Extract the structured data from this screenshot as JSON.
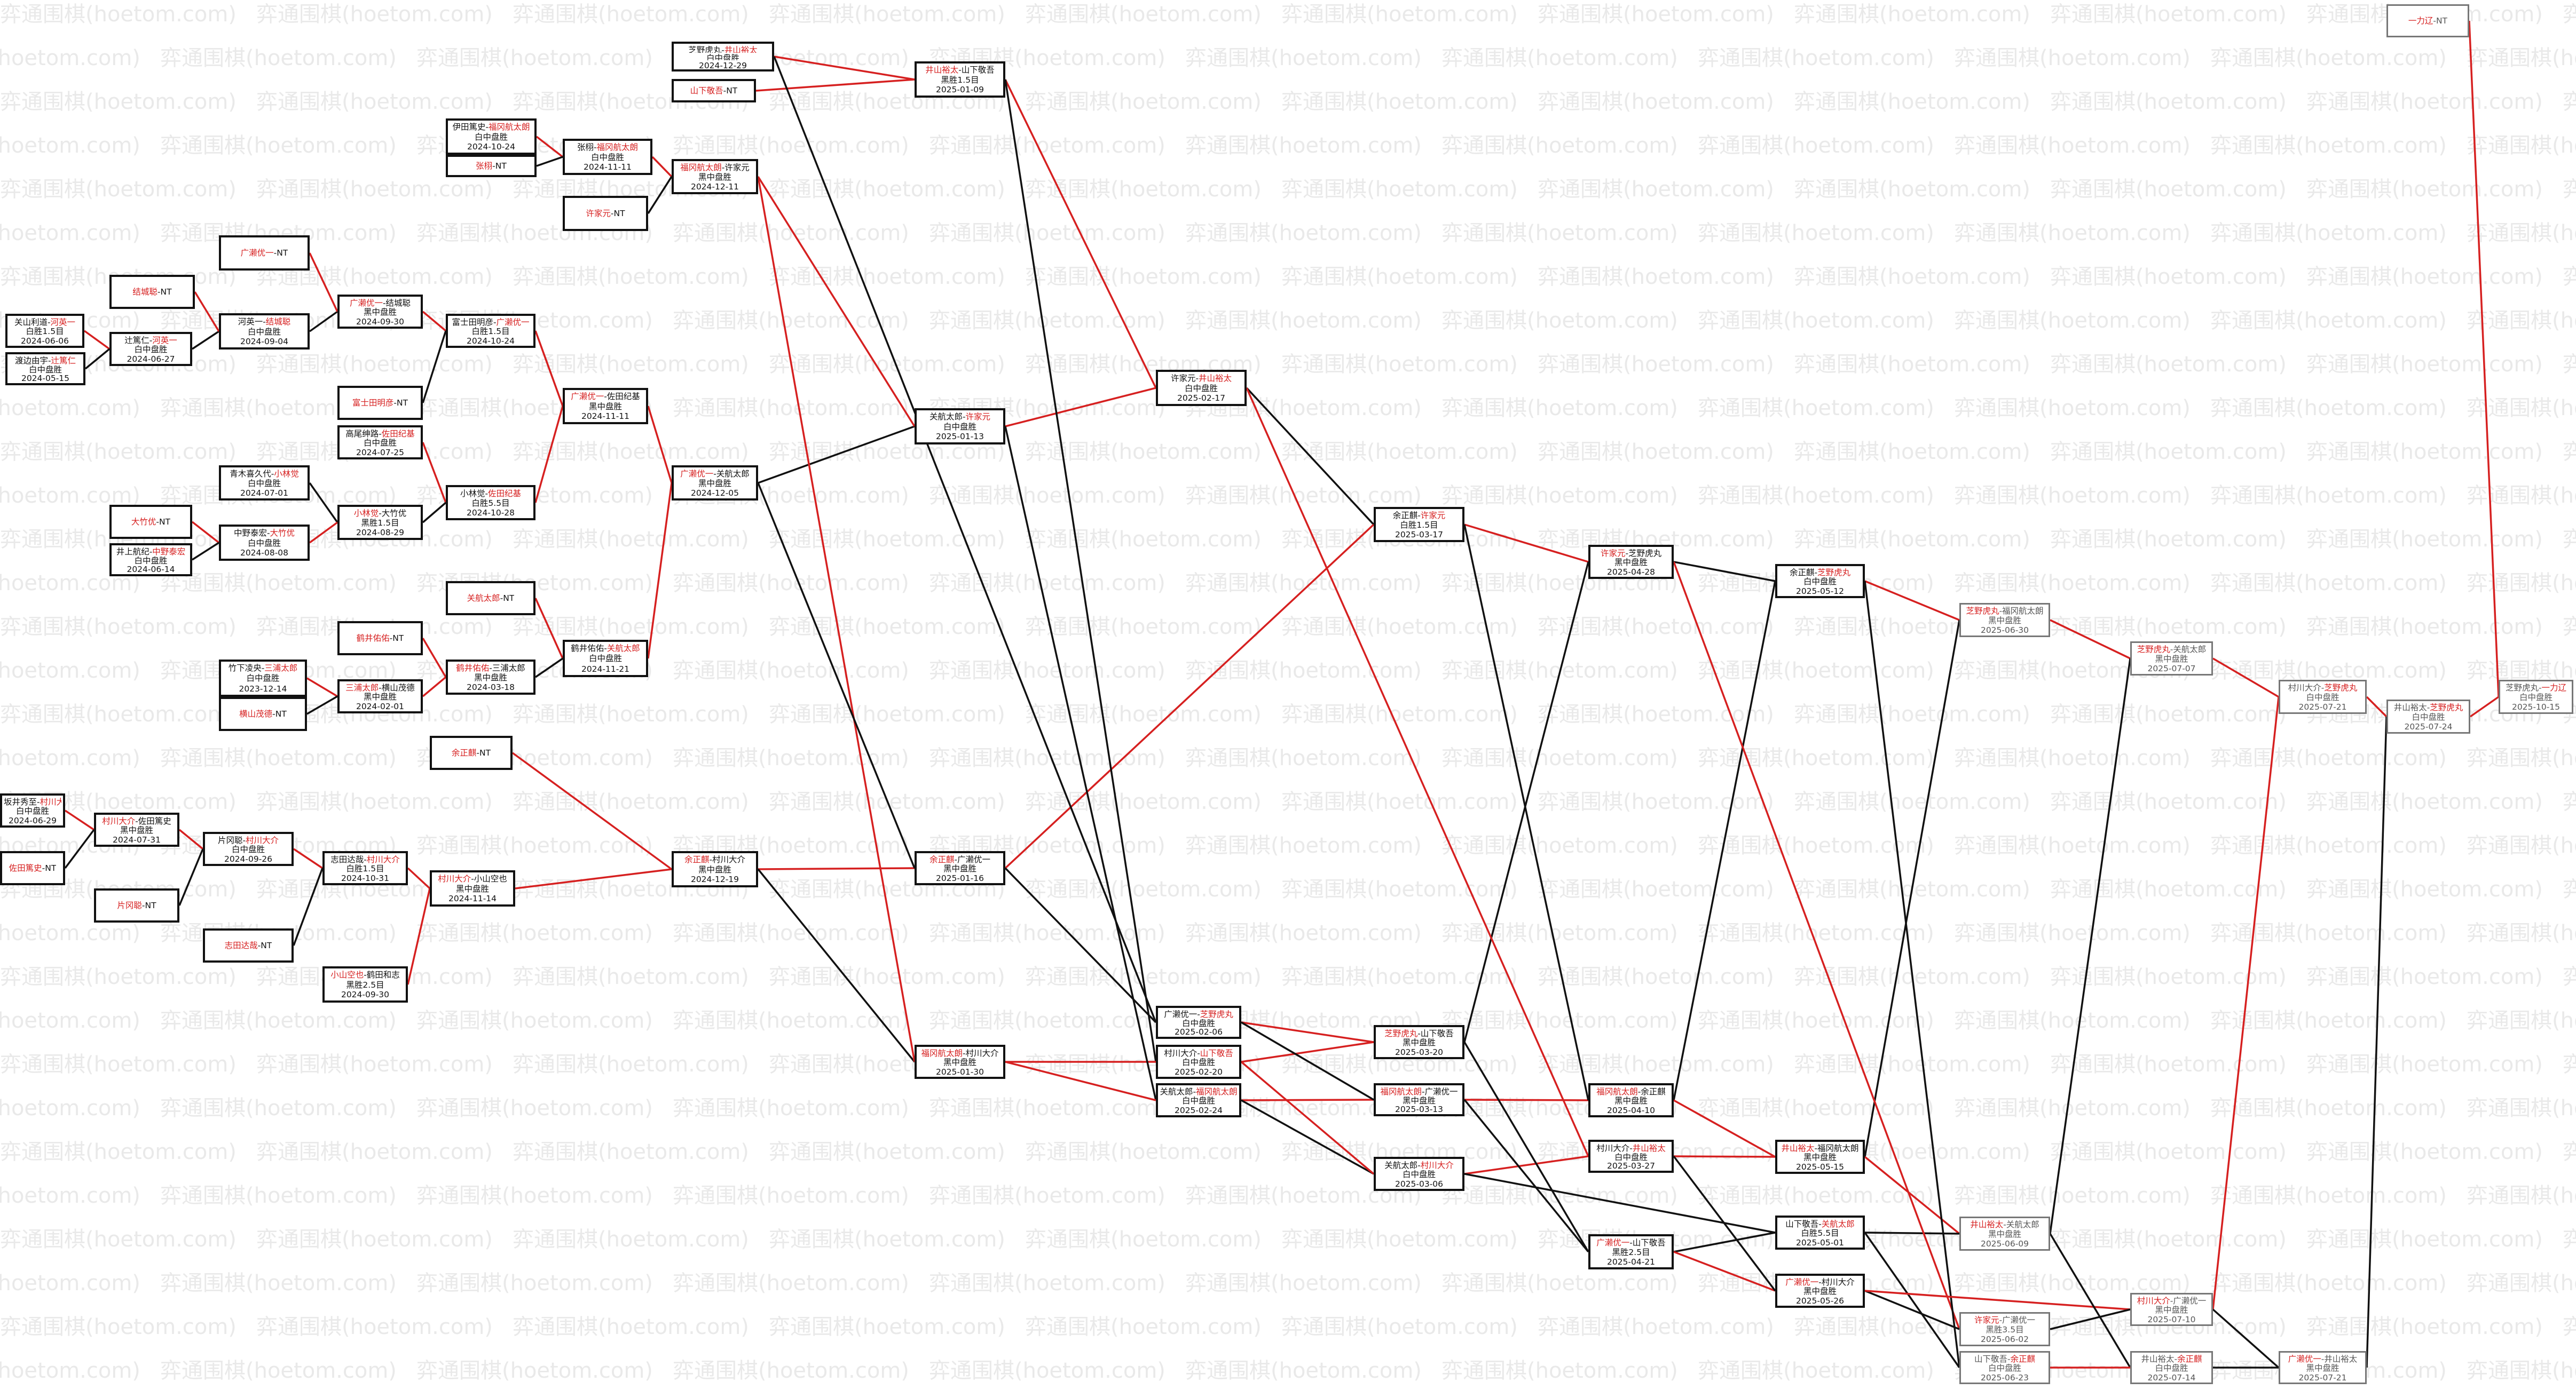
{
  "watermark": "弈通围棋(hoetom.com)",
  "colors": {
    "win": "#d62020",
    "loss": "#111111",
    "border": "#111111",
    "faded": "#777777"
  },
  "nodes": [
    {
      "id": "n1",
      "l1": [
        [
          "芝野虎丸",
          "k"
        ],
        [
          "-",
          "k"
        ],
        [
          "井山裕太",
          "r"
        ]
      ],
      "l2": "白中盘胜",
      "l3": "2024-12-29"
    },
    {
      "id": "n2",
      "l1": [
        [
          "山下敬吾",
          "r"
        ],
        [
          "-NT",
          "k"
        ]
      ]
    },
    {
      "id": "n3",
      "l1": [
        [
          "井山裕太",
          "r"
        ],
        [
          "-山下敬吾",
          "k"
        ]
      ],
      "l2": "黑胜1.5目",
      "l3": "2025-01-09"
    },
    {
      "id": "n4",
      "l1": [
        [
          "伊田篤史-",
          "k"
        ],
        [
          "福冈航太朗",
          "r"
        ]
      ],
      "l2": "白中盘胜",
      "l3": "2024-10-24"
    },
    {
      "id": "n5",
      "l1": [
        [
          "张栩",
          "r"
        ],
        [
          "-NT",
          "k"
        ]
      ]
    },
    {
      "id": "n6",
      "l1": [
        [
          "张栩-",
          "k"
        ],
        [
          "福冈航太朗",
          "r"
        ]
      ],
      "l2": "白中盘胜",
      "l3": "2024-11-11"
    },
    {
      "id": "n7",
      "l1": [
        [
          "福冈航太朗",
          "r"
        ],
        [
          "-许家元",
          "k"
        ]
      ],
      "l2": "黑中盘胜",
      "l3": "2024-12-11"
    },
    {
      "id": "n8",
      "l1": [
        [
          "许家元",
          "r"
        ],
        [
          "-NT",
          "k"
        ]
      ]
    },
    {
      "id": "n9",
      "l1": [
        [
          "广濑优一",
          "r"
        ],
        [
          "-NT",
          "k"
        ]
      ]
    },
    {
      "id": "n10",
      "l1": [
        [
          "结城聪",
          "r"
        ],
        [
          "-NT",
          "k"
        ]
      ]
    },
    {
      "id": "n11",
      "l1": [
        [
          "关山利道-",
          "k"
        ],
        [
          "河英一",
          "r"
        ]
      ],
      "l2": "白胜1.5目",
      "l3": "2024-06-06"
    },
    {
      "id": "n12",
      "l1": [
        [
          "渡边由宇-",
          "k"
        ],
        [
          "辻篤仁",
          "r"
        ]
      ],
      "l2": "白中盘胜",
      "l3": "2024-05-15"
    },
    {
      "id": "n13",
      "l1": [
        [
          "辻篤仁-",
          "k"
        ],
        [
          "河英一",
          "r"
        ]
      ],
      "l2": "白中盘胜",
      "l3": "2024-06-27"
    },
    {
      "id": "n14",
      "l1": [
        [
          "河英一-",
          "k"
        ],
        [
          "结城聪",
          "r"
        ]
      ],
      "l2": "白中盘胜",
      "l3": "2024-09-04"
    },
    {
      "id": "n15",
      "l1": [
        [
          "广濑优一",
          "r"
        ],
        [
          "-结城聪",
          "k"
        ]
      ],
      "l2": "黑中盘胜",
      "l3": "2024-09-30"
    },
    {
      "id": "n16",
      "l1": [
        [
          "富士田明彦-",
          "k"
        ],
        [
          "广濑优一",
          "r"
        ]
      ],
      "l2": "白胜1.5目",
      "l3": "2024-10-24"
    },
    {
      "id": "n17",
      "l1": [
        [
          "富士田明彦",
          "r"
        ],
        [
          "-NT",
          "k"
        ]
      ]
    },
    {
      "id": "n18",
      "l1": [
        [
          "高尾绅路-",
          "k"
        ],
        [
          "佐田纪基",
          "r"
        ]
      ],
      "l2": "白中盘胜",
      "l3": "2024-07-25"
    },
    {
      "id": "n19",
      "l1": [
        [
          "广濑优一",
          "r"
        ],
        [
          "-佐田纪基",
          "k"
        ]
      ],
      "l2": "黑中盘胜",
      "l3": "2024-11-11"
    },
    {
      "id": "n20",
      "l1": [
        [
          "青木喜久代-",
          "k"
        ],
        [
          "小林觉",
          "r"
        ]
      ],
      "l2": "白中盘胜",
      "l3": "2024-07-01"
    },
    {
      "id": "n21",
      "l1": [
        [
          "小林觉-",
          "k"
        ],
        [
          "佐田纪基",
          "r"
        ]
      ],
      "l2": "白胜5.5目",
      "l3": "2024-10-28"
    },
    {
      "id": "n22",
      "l1": [
        [
          "大竹优",
          "r"
        ],
        [
          "-NT",
          "k"
        ]
      ]
    },
    {
      "id": "n23",
      "l1": [
        [
          "井上航纪-",
          "k"
        ],
        [
          "中野泰宏",
          "r"
        ]
      ],
      "l2": "白中盘胜",
      "l3": "2024-06-14"
    },
    {
      "id": "n24",
      "l1": [
        [
          "中野泰宏-",
          "k"
        ],
        [
          "大竹优",
          "r"
        ]
      ],
      "l2": "白中盘胜",
      "l3": "2024-08-08"
    },
    {
      "id": "n25",
      "l1": [
        [
          "小林觉",
          "r"
        ],
        [
          "-大竹优",
          "k"
        ]
      ],
      "l2": "黑胜1.5目",
      "l3": "2024-08-29"
    },
    {
      "id": "n26",
      "l1": [
        [
          "广濑优一",
          "r"
        ],
        [
          "-关航太郎",
          "k"
        ]
      ],
      "l2": "黑中盘胜",
      "l3": "2024-12-05"
    },
    {
      "id": "n27",
      "l1": [
        [
          "关航太郎",
          "r"
        ],
        [
          "-NT",
          "k"
        ]
      ]
    },
    {
      "id": "n28",
      "l1": [
        [
          "鹤井佑佑",
          "r"
        ],
        [
          "-NT",
          "k"
        ]
      ]
    },
    {
      "id": "n29",
      "l1": [
        [
          "竹下凌央-",
          "k"
        ],
        [
          "三浦太郎",
          "r"
        ]
      ],
      "l2": "白中盘胜",
      "l3": "2023-12-14"
    },
    {
      "id": "n30",
      "l1": [
        [
          "横山茂德",
          "r"
        ],
        [
          "-NT",
          "k"
        ]
      ]
    },
    {
      "id": "n31",
      "l1": [
        [
          "三浦太郎",
          "r"
        ],
        [
          "-横山茂德",
          "k"
        ]
      ],
      "l2": "黑中盘胜",
      "l3": "2024-02-01"
    },
    {
      "id": "n32",
      "l1": [
        [
          "鹤井佑佑",
          "r"
        ],
        [
          "-三浦太郎",
          "k"
        ]
      ],
      "l2": "黑中盘胜",
      "l3": "2024-03-18"
    },
    {
      "id": "n33",
      "l1": [
        [
          "鹤井佑佑-",
          "k"
        ],
        [
          "关航太郎",
          "r"
        ]
      ],
      "l2": "白中盘胜",
      "l3": "2024-11-21"
    },
    {
      "id": "n34",
      "l1": [
        [
          "关航太郎-",
          "k"
        ],
        [
          "许家元",
          "r"
        ]
      ],
      "l2": "白中盘胜",
      "l3": "2025-01-13"
    },
    {
      "id": "n35",
      "l1": [
        [
          "许家元-",
          "k"
        ],
        [
          "井山裕太",
          "r"
        ]
      ],
      "l2": "白中盘胜",
      "l3": "2025-02-17"
    },
    {
      "id": "n36",
      "l1": [
        [
          "余正麒",
          "r"
        ],
        [
          "-NT",
          "k"
        ]
      ]
    },
    {
      "id": "n37",
      "l1": [
        [
          "坂井秀至-",
          "k"
        ],
        [
          "村川大介",
          "r"
        ]
      ],
      "l2": "白中盘胜",
      "l3": "2024-06-29"
    },
    {
      "id": "n38",
      "l1": [
        [
          "佐田篤史",
          "r"
        ],
        [
          "-NT",
          "k"
        ]
      ]
    },
    {
      "id": "n39",
      "l1": [
        [
          "村川大介",
          "r"
        ],
        [
          "-佐田篤史",
          "k"
        ]
      ],
      "l2": "黑中盘胜",
      "l3": "2024-07-31"
    },
    {
      "id": "n40",
      "l1": [
        [
          "片冈聪-",
          "k"
        ],
        [
          "村川大介",
          "r"
        ]
      ],
      "l2": "白中盘胜",
      "l3": "2024-09-26"
    },
    {
      "id": "n41",
      "l1": [
        [
          "片冈聪",
          "r"
        ],
        [
          "-NT",
          "k"
        ]
      ]
    },
    {
      "id": "n42",
      "l1": [
        [
          "志田达哉-",
          "k"
        ],
        [
          "村川大介",
          "r"
        ]
      ],
      "l2": "白胜1.5目",
      "l3": "2024-10-31"
    },
    {
      "id": "n43",
      "l1": [
        [
          "志田达哉",
          "r"
        ],
        [
          "-NT",
          "k"
        ]
      ]
    },
    {
      "id": "n44",
      "l1": [
        [
          "小山空也",
          "r"
        ],
        [
          "-鹤田和志",
          "k"
        ]
      ],
      "l2": "黑胜2.5目",
      "l3": "2024-09-30"
    },
    {
      "id": "n45",
      "l1": [
        [
          "村川大介",
          "r"
        ],
        [
          "-小山空也",
          "k"
        ]
      ],
      "l2": "黑中盘胜",
      "l3": "2024-11-14"
    },
    {
      "id": "n46",
      "l1": [
        [
          "余正麒",
          "r"
        ],
        [
          "-村川大介",
          "k"
        ]
      ],
      "l2": "黑中盘胜",
      "l3": "2024-12-19"
    },
    {
      "id": "n47",
      "l1": [
        [
          "余正麒",
          "r"
        ],
        [
          "-广濑优一",
          "k"
        ]
      ],
      "l2": "黑中盘胜",
      "l3": "2025-01-16"
    },
    {
      "id": "n48",
      "l1": [
        [
          "福冈航太朗",
          "r"
        ],
        [
          "-村川大介",
          "k"
        ]
      ],
      "l2": "黑中盘胜",
      "l3": "2025-01-30"
    },
    {
      "id": "n49",
      "l1": [
        [
          "余正麒-",
          "k"
        ],
        [
          "许家元",
          "r"
        ]
      ],
      "l2": "白胜1.5目",
      "l3": "2025-03-17"
    },
    {
      "id": "n50",
      "l1": [
        [
          "广濑优一-",
          "k"
        ],
        [
          "芝野虎丸",
          "r"
        ]
      ],
      "l2": "白中盘胜",
      "l3": "2025-02-06"
    },
    {
      "id": "n51",
      "l1": [
        [
          "村川大介-",
          "k"
        ],
        [
          "山下敬吾",
          "r"
        ]
      ],
      "l2": "白中盘胜",
      "l3": "2025-02-20"
    },
    {
      "id": "n52",
      "l1": [
        [
          "关航太郎-",
          "k"
        ],
        [
          "福冈航太朗",
          "r"
        ]
      ],
      "l2": "白中盘胜",
      "l3": "2025-02-24"
    },
    {
      "id": "n53",
      "l1": [
        [
          "芝野虎丸",
          "r"
        ],
        [
          "-山下敬吾",
          "k"
        ]
      ],
      "l2": "黑中盘胜",
      "l3": "2025-03-20"
    },
    {
      "id": "n54",
      "l1": [
        [
          "福冈航太朗",
          "r"
        ],
        [
          "-广濑优一",
          "k"
        ]
      ],
      "l2": "黑中盘胜",
      "l3": "2025-03-13"
    },
    {
      "id": "n55",
      "l1": [
        [
          "关航太郎-",
          "k"
        ],
        [
          "村川大介",
          "r"
        ]
      ],
      "l2": "白中盘胜",
      "l3": "2025-03-06"
    },
    {
      "id": "n56",
      "l1": [
        [
          "许家元",
          "r"
        ],
        [
          "-芝野虎丸",
          "k"
        ]
      ],
      "l2": "黑中盘胜",
      "l3": "2025-04-28"
    },
    {
      "id": "n57",
      "l1": [
        [
          "福冈航太朗",
          "r"
        ],
        [
          "-余正麒",
          "k"
        ]
      ],
      "l2": "黑中盘胜",
      "l3": "2025-04-10"
    },
    {
      "id": "n58",
      "l1": [
        [
          "村川大介-",
          "k"
        ],
        [
          "井山裕太",
          "r"
        ]
      ],
      "l2": "白中盘胜",
      "l3": "2025-03-27"
    },
    {
      "id": "n59",
      "l1": [
        [
          "广濑优一",
          "r"
        ],
        [
          "-山下敬吾",
          "k"
        ]
      ],
      "l2": "黑胜2.5目",
      "l3": "2025-04-21"
    },
    {
      "id": "n60",
      "l1": [
        [
          "余正麒-",
          "k"
        ],
        [
          "芝野虎丸",
          "r"
        ]
      ],
      "l2": "白中盘胜",
      "l3": "2025-05-12"
    },
    {
      "id": "n61",
      "l1": [
        [
          "井山裕太",
          "r"
        ],
        [
          "-福冈航太朗",
          "k"
        ]
      ],
      "l2": "黑中盘胜",
      "l3": "2025-05-15"
    },
    {
      "id": "n62",
      "l1": [
        [
          "山下敬吾-",
          "k"
        ],
        [
          "关航太郎",
          "r"
        ]
      ],
      "l2": "白胜5.5目",
      "l3": "2025-05-01"
    },
    {
      "id": "n63",
      "l1": [
        [
          "广濑优一",
          "r"
        ],
        [
          "-村川大介",
          "k"
        ]
      ],
      "l2": "黑中盘胜",
      "l3": "2025-05-26"
    },
    {
      "id": "n64",
      "l1": [
        [
          "芝野虎丸",
          "r"
        ],
        [
          "-福冈航太朗",
          "k"
        ]
      ],
      "l2": "黑中盘胜",
      "l3": "2025-06-30"
    },
    {
      "id": "n65",
      "l1": [
        [
          "井山裕太",
          "r"
        ],
        [
          "-关航太郎",
          "k"
        ]
      ],
      "l2": "黑中盘胜",
      "l3": "2025-06-09"
    },
    {
      "id": "n66",
      "l1": [
        [
          "许家元",
          "r"
        ],
        [
          "-广濑优一",
          "k"
        ]
      ],
      "l2": "黑胜3.5目",
      "l3": "2025-06-02"
    },
    {
      "id": "n67",
      "l1": [
        [
          "山下敬吾-",
          "k"
        ],
        [
          "余正麒",
          "r"
        ]
      ],
      "l2": "白中盘胜",
      "l3": "2025-06-23"
    },
    {
      "id": "n68",
      "l1": [
        [
          "芝野虎丸",
          "r"
        ],
        [
          "-关航太郎",
          "k"
        ]
      ],
      "l2": "黑中盘胜",
      "l3": "2025-07-07"
    },
    {
      "id": "n69",
      "l1": [
        [
          "村川大介",
          "r"
        ],
        [
          "-广濑优一",
          "k"
        ]
      ],
      "l2": "黑中盘胜",
      "l3": "2025-07-10"
    },
    {
      "id": "n70",
      "l1": [
        [
          "井山裕太-",
          "k"
        ],
        [
          "余正麒",
          "r"
        ]
      ],
      "l2": "白中盘胜",
      "l3": "2025-07-14"
    },
    {
      "id": "n71",
      "l1": [
        [
          "村川大介-",
          "k"
        ],
        [
          "芝野虎丸",
          "r"
        ]
      ],
      "l2": "白中盘胜",
      "l3": "2025-07-21"
    },
    {
      "id": "n72",
      "l1": [
        [
          "广濑优一",
          "r"
        ],
        [
          "-井山裕太",
          "k"
        ]
      ],
      "l2": "黑中盘胜",
      "l3": "2025-07-21"
    },
    {
      "id": "n73",
      "l1": [
        [
          "井山裕太-",
          "k"
        ],
        [
          "芝野虎丸",
          "r"
        ]
      ],
      "l2": "白中盘胜",
      "l3": "2025-07-24"
    },
    {
      "id": "n74",
      "l1": [
        [
          "芝野虎丸-",
          "k"
        ],
        [
          "一力辽",
          "r"
        ]
      ],
      "l2": "白中盘胜",
      "l3": "2025-10-15"
    },
    {
      "id": "n75",
      "l1": [
        [
          "一力辽",
          "r"
        ],
        [
          "-NT",
          "k"
        ]
      ]
    }
  ],
  "edges": [
    [
      "n1",
      "n3",
      "w"
    ],
    [
      "n2",
      "n3",
      "w"
    ],
    [
      "n4",
      "n6",
      "w"
    ],
    [
      "n5",
      "n6",
      "l"
    ],
    [
      "n6",
      "n7",
      "w"
    ],
    [
      "n8",
      "n7",
      "l"
    ],
    [
      "n11",
      "n13",
      "w"
    ],
    [
      "n12",
      "n13",
      "l"
    ],
    [
      "n13",
      "n14",
      "l"
    ],
    [
      "n10",
      "n14",
      "w"
    ],
    [
      "n14",
      "n15",
      "l"
    ],
    [
      "n9",
      "n15",
      "w"
    ],
    [
      "n15",
      "n16",
      "w"
    ],
    [
      "n17",
      "n16",
      "l"
    ],
    [
      "n16",
      "n19",
      "w"
    ],
    [
      "n18",
      "n21",
      "w"
    ],
    [
      "n20",
      "n25",
      "l"
    ],
    [
      "n22",
      "n24",
      "w"
    ],
    [
      "n23",
      "n24",
      "l"
    ],
    [
      "n24",
      "n25",
      "w"
    ],
    [
      "n25",
      "n21",
      "l"
    ],
    [
      "n21",
      "n19",
      "w"
    ],
    [
      "n19",
      "n26",
      "w"
    ],
    [
      "n26",
      "n34",
      "l"
    ],
    [
      "n27",
      "n33",
      "w"
    ],
    [
      "n29",
      "n31",
      "w"
    ],
    [
      "n30",
      "n31",
      "l"
    ],
    [
      "n31",
      "n32",
      "w"
    ],
    [
      "n28",
      "n32",
      "w"
    ],
    [
      "n32",
      "n33",
      "l"
    ],
    [
      "n33",
      "n26",
      "w"
    ],
    [
      "n7",
      "n34",
      "w"
    ],
    [
      "n34",
      "n35",
      "w"
    ],
    [
      "n3",
      "n35",
      "w"
    ],
    [
      "n37",
      "n39",
      "w"
    ],
    [
      "n38",
      "n39",
      "l"
    ],
    [
      "n39",
      "n40",
      "w"
    ],
    [
      "n41",
      "n40",
      "l"
    ],
    [
      "n40",
      "n42",
      "w"
    ],
    [
      "n43",
      "n42",
      "l"
    ],
    [
      "n42",
      "n45",
      "w"
    ],
    [
      "n44",
      "n45",
      "w"
    ],
    [
      "n45",
      "n46",
      "w"
    ],
    [
      "n36",
      "n46",
      "w"
    ],
    [
      "n46",
      "n47",
      "w"
    ],
    [
      "n46",
      "n48",
      "l"
    ],
    [
      "n7",
      "n48",
      "w"
    ],
    [
      "n26",
      "n47",
      "l"
    ],
    [
      "n35",
      "n49",
      "l"
    ],
    [
      "n47",
      "n49",
      "w"
    ],
    [
      "n1",
      "n50",
      "l"
    ],
    [
      "n3",
      "n51",
      "l"
    ],
    [
      "n48",
      "n51",
      "w"
    ],
    [
      "n34",
      "n52",
      "l"
    ],
    [
      "n48",
      "n52",
      "w"
    ],
    [
      "n47",
      "n50",
      "l"
    ],
    [
      "n50",
      "n53",
      "w"
    ],
    [
      "n51",
      "n53",
      "w"
    ],
    [
      "n52",
      "n54",
      "w"
    ],
    [
      "n50",
      "n54",
      "l"
    ],
    [
      "n52",
      "n55",
      "l"
    ],
    [
      "n51",
      "n55",
      "w"
    ],
    [
      "n49",
      "n56",
      "w"
    ],
    [
      "n53",
      "n56",
      "l"
    ],
    [
      "n54",
      "n57",
      "w"
    ],
    [
      "n49",
      "n57",
      "l"
    ],
    [
      "n55",
      "n58",
      "w"
    ],
    [
      "n35",
      "n58",
      "w"
    ],
    [
      "n53",
      "n59",
      "l"
    ],
    [
      "n54",
      "n59",
      "l"
    ],
    [
      "n56",
      "n60",
      "l"
    ],
    [
      "n57",
      "n60",
      "l"
    ],
    [
      "n57",
      "n61",
      "w"
    ],
    [
      "n58",
      "n61",
      "w"
    ],
    [
      "n55",
      "n62",
      "l"
    ],
    [
      "n59",
      "n62",
      "l"
    ],
    [
      "n59",
      "n63",
      "w"
    ],
    [
      "n58",
      "n63",
      "l"
    ],
    [
      "n60",
      "n64",
      "w"
    ],
    [
      "n61",
      "n64",
      "l"
    ],
    [
      "n61",
      "n65",
      "w"
    ],
    [
      "n62",
      "n65",
      "l"
    ],
    [
      "n56",
      "n66",
      "w"
    ],
    [
      "n63",
      "n66",
      "l"
    ],
    [
      "n62",
      "n67",
      "l"
    ],
    [
      "n60",
      "n67",
      "l"
    ],
    [
      "n64",
      "n68",
      "w"
    ],
    [
      "n65",
      "n68",
      "l"
    ],
    [
      "n63",
      "n69",
      "w"
    ],
    [
      "n66",
      "n69",
      "l"
    ],
    [
      "n65",
      "n70",
      "l"
    ],
    [
      "n67",
      "n70",
      "w"
    ],
    [
      "n68",
      "n71",
      "w"
    ],
    [
      "n69",
      "n71",
      "w"
    ],
    [
      "n69",
      "n72",
      "l"
    ],
    [
      "n70",
      "n72",
      "l"
    ],
    [
      "n71",
      "n73",
      "w"
    ],
    [
      "n72",
      "n73",
      "l"
    ],
    [
      "n73",
      "n74",
      "w"
    ],
    [
      "n75",
      "n74",
      "w"
    ]
  ]
}
